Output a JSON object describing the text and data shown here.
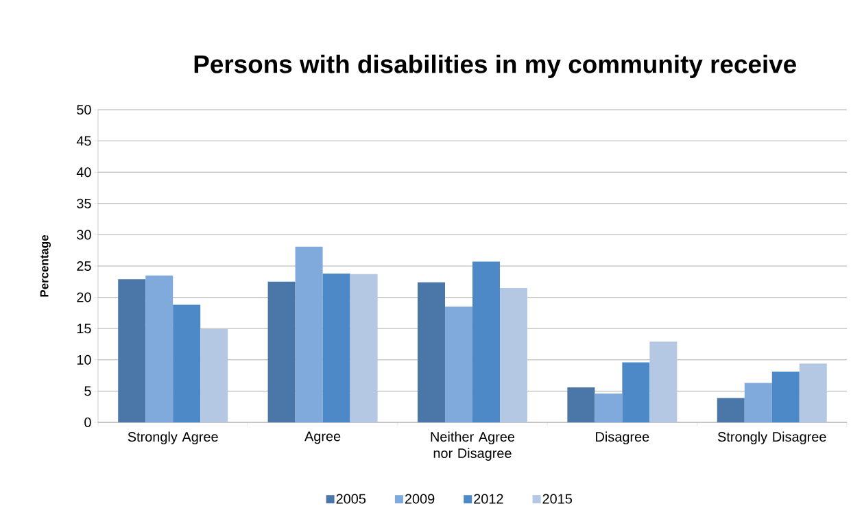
{
  "chart_data": {
    "type": "bar",
    "title": "Persons with disabilities in my community receive",
    "ylabel": "Percentage",
    "categories": [
      "Strongly Agree",
      "Agree",
      "Neither Agree nor Disagree",
      "Disagree",
      "Strongly Disagree"
    ],
    "series": [
      {
        "name": "2005",
        "color": "#4a76a8",
        "values": [
          22.9,
          22.5,
          22.4,
          5.6,
          3.9
        ]
      },
      {
        "name": "2009",
        "color": "#80aadb",
        "values": [
          23.5,
          28.1,
          18.5,
          4.6,
          6.3
        ]
      },
      {
        "name": "2012",
        "color": "#4d89c6",
        "values": [
          18.8,
          23.8,
          25.7,
          9.6,
          8.1
        ]
      },
      {
        "name": "2015",
        "color": "#b4c8e4",
        "values": [
          14.9,
          23.7,
          21.5,
          12.9,
          9.4
        ]
      }
    ],
    "ylim": [
      0,
      50
    ],
    "yticks": [
      0,
      5,
      10,
      15,
      20,
      25,
      30,
      35,
      40,
      45,
      50
    ],
    "grid": "y",
    "legend": "bottom"
  }
}
